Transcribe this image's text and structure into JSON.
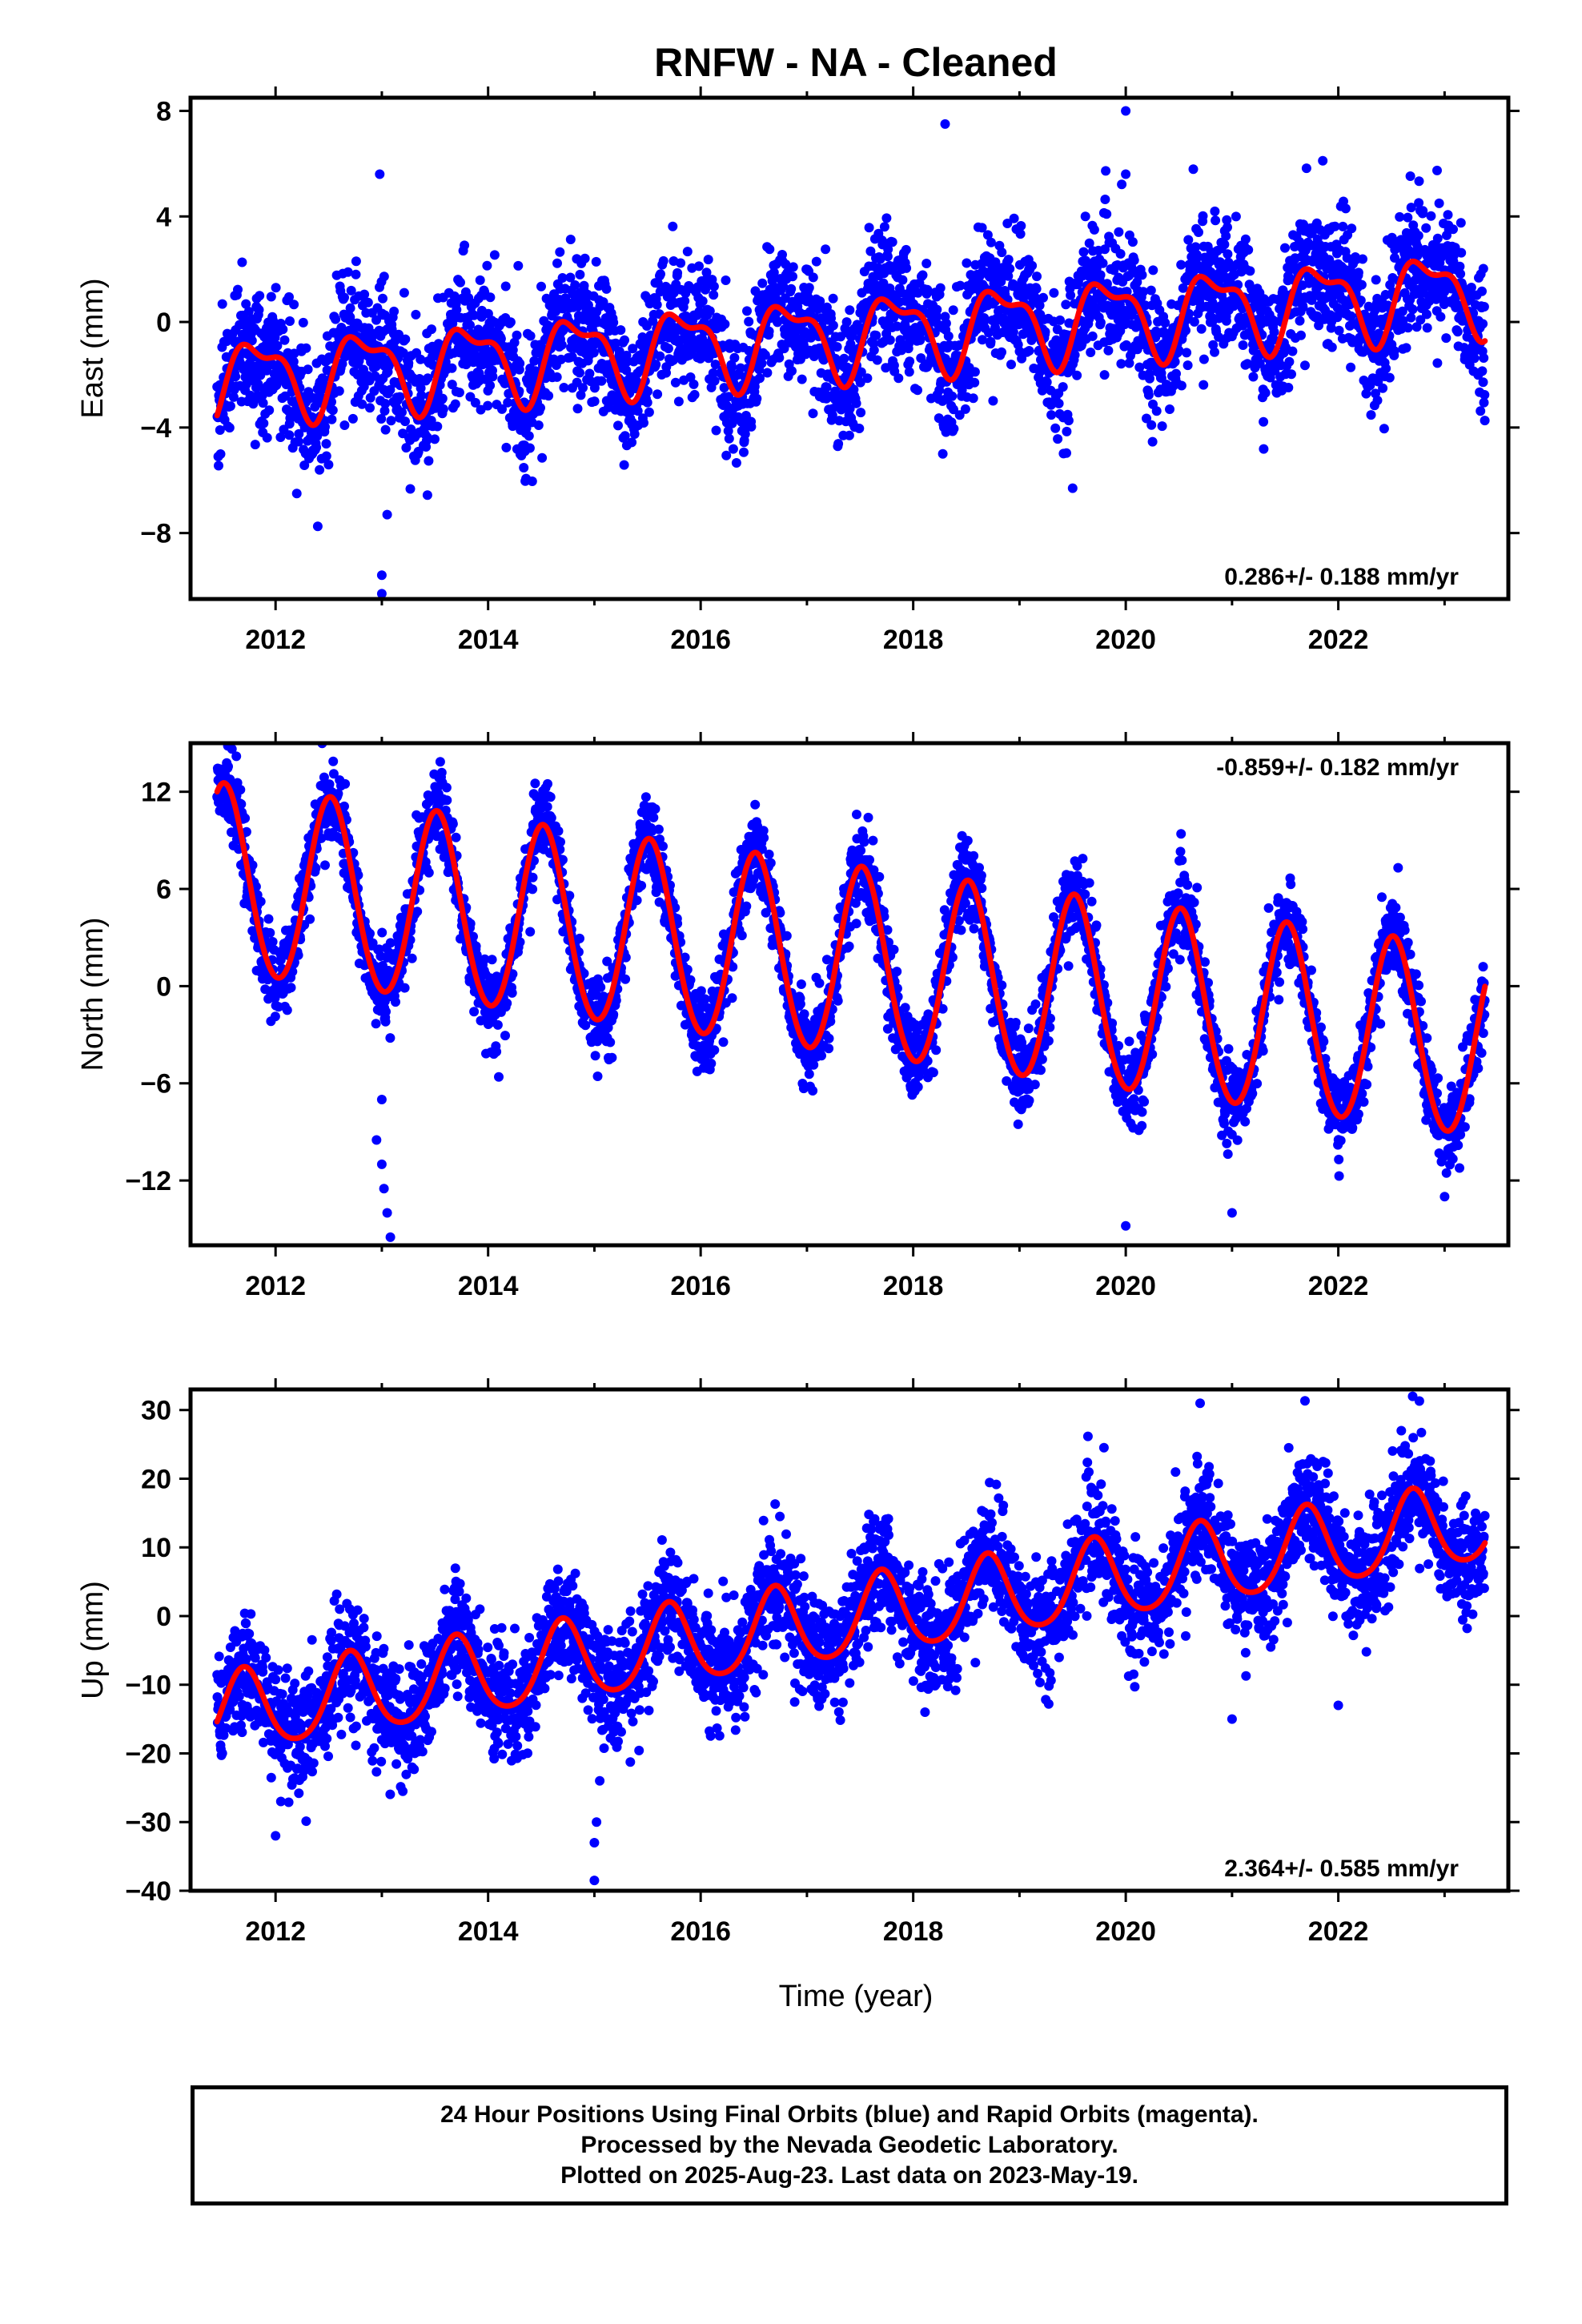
{
  "title": "RNFW  - NA - Cleaned",
  "colors": {
    "data_points": "#0000ff",
    "model_line": "#ff0000",
    "frame": "#000000"
  },
  "chart_data": [
    {
      "type": "scatter",
      "component": "East",
      "ylabel": "East (mm)",
      "xlabel": "",
      "xlim": [
        2011.2,
        2023.6
      ],
      "ylim": [
        -10.5,
        8.5
      ],
      "xticks": [
        "2012",
        "2014",
        "2016",
        "2018",
        "2020",
        "2022"
      ],
      "yticks": [
        "8",
        "4",
        "0",
        "−4",
        "−8"
      ],
      "rate_label": "0.286+/- 0.188 mm/yr",
      "rate_position": "bottom-right",
      "model": {
        "trend_mm_per_yr": 0.286,
        "offset_mm_at_2017_4": -0.5,
        "annual_amplitude_mm": 1.4,
        "annual_peak_year_fraction": 0.83,
        "semiannual_amplitude_mm": 0.6,
        "semiannual_peak_year_fraction": 0.62
      },
      "scatter_std_mm": 1.2,
      "series": [
        {
          "name": "24 Hour Positions Using Final Orbits (blue)",
          "type": "scatter"
        },
        {
          "name": "model",
          "type": "line"
        }
      ],
      "outliers": [
        [
          2013.0,
          -9.6
        ],
        [
          2013.0,
          -10.3
        ],
        [
          2013.05,
          -7.3
        ],
        [
          2012.98,
          5.6
        ],
        [
          2018.3,
          7.5
        ],
        [
          2020.0,
          8.0
        ],
        [
          2020.0,
          5.6
        ],
        [
          2019.5,
          -6.3
        ],
        [
          2012.2,
          -6.5
        ]
      ]
    },
    {
      "type": "scatter",
      "component": "North",
      "ylabel": "North (mm)",
      "xlabel": "",
      "xlim": [
        2011.2,
        2023.6
      ],
      "ylim": [
        -16,
        15
      ],
      "xticks": [
        "2012",
        "2014",
        "2016",
        "2018",
        "2020",
        "2022"
      ],
      "yticks": [
        "12",
        "6",
        "0",
        "−6",
        "−12"
      ],
      "rate_label": "-0.859+/- 0.182 mm/yr",
      "rate_position": "top-right",
      "model": {
        "trend_mm_per_yr": -0.859,
        "offset_mm_at_2017_4": 1.4,
        "annual_amplitude_mm": 5.8,
        "annual_peak_year_fraction": 0.52,
        "semiannual_amplitude_mm": 0.3,
        "semiannual_peak_year_fraction": 0.0
      },
      "scatter_std_mm": 1.2,
      "series": [
        {
          "name": "24 Hour Positions Using Final Orbits (blue)",
          "type": "scatter"
        },
        {
          "name": "model",
          "type": "line"
        }
      ],
      "outliers": [
        [
          2013.0,
          -11.0
        ],
        [
          2013.02,
          -12.5
        ],
        [
          2013.05,
          -14.0
        ],
        [
          2013.08,
          -15.5
        ],
        [
          2013.0,
          -7.0
        ],
        [
          2012.95,
          -9.5
        ],
        [
          2020.0,
          -14.8
        ],
        [
          2021.0,
          -14.0
        ],
        [
          2023.0,
          -13.0
        ],
        [
          2014.1,
          -5.6
        ]
      ]
    },
    {
      "type": "scatter",
      "component": "Up",
      "ylabel": "Up (mm)",
      "xlabel": "Time (year)",
      "xlim": [
        2011.2,
        2023.6
      ],
      "ylim": [
        -40,
        33
      ],
      "xticks": [
        "2012",
        "2014",
        "2016",
        "2018",
        "2020",
        "2022"
      ],
      "yticks": [
        "30",
        "20",
        "10",
        "0",
        "−10",
        "−20",
        "−30",
        "−40"
      ],
      "rate_label": "2.364+/- 0.585 mm/yr",
      "rate_position": "bottom-right",
      "model": {
        "trend_mm_per_yr": 2.364,
        "offset_mm_at_2017_4": -0.5,
        "annual_amplitude_mm": 5.8,
        "annual_peak_year_fraction": 0.7,
        "semiannual_amplitude_mm": 0.8,
        "semiannual_peak_year_fraction": 0.2
      },
      "scatter_std_mm": 4.0,
      "series": [
        {
          "name": "24 Hour Positions Using Final Orbits (blue)",
          "type": "scatter"
        },
        {
          "name": "model",
          "type": "line"
        }
      ],
      "outliers": [
        [
          2015.0,
          -38.5
        ],
        [
          2015.0,
          -33.0
        ],
        [
          2015.02,
          -30.0
        ],
        [
          2015.05,
          -24.0
        ],
        [
          2012.0,
          -32.0
        ],
        [
          2012.05,
          -27.0
        ],
        [
          2020.7,
          31.0
        ],
        [
          2022.7,
          32.0
        ],
        [
          2021.0,
          -15.0
        ],
        [
          2022.0,
          -13.0
        ]
      ]
    }
  ],
  "footer": {
    "line1": "24 Hour Positions Using Final Orbits (blue) and Rapid Orbits (magenta).",
    "line2": "Processed by the Nevada Geodetic Laboratory.",
    "line3": "Plotted on 2025-Aug-23. Last data on 2023-May-19."
  }
}
